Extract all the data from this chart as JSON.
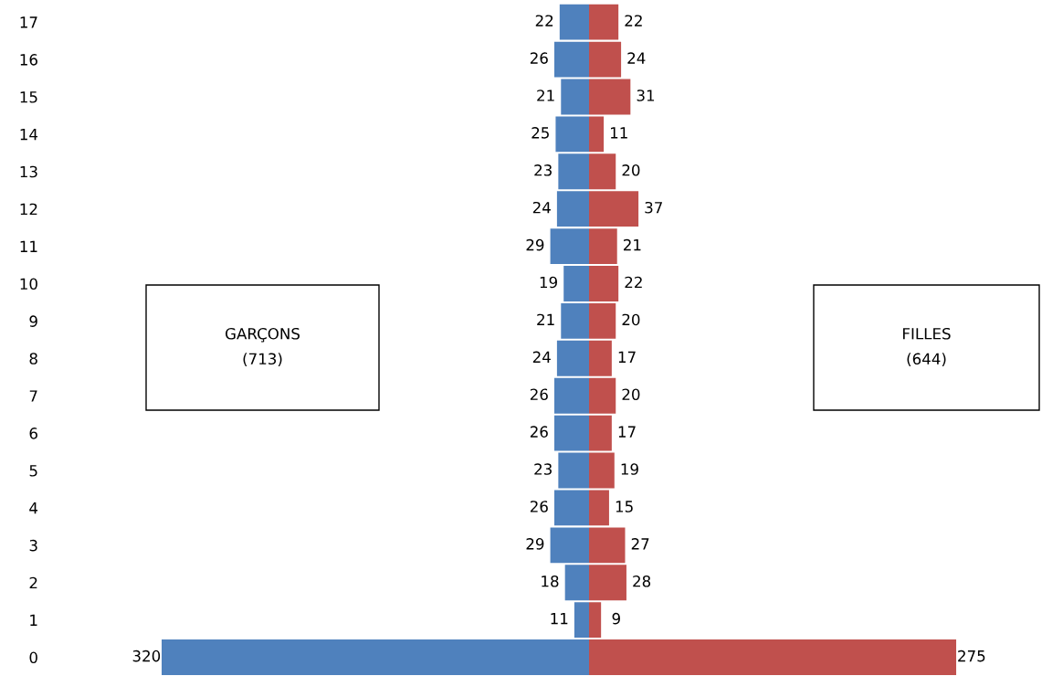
{
  "chart_data": [
    {
      "type": "bar",
      "orientation": "horizontal",
      "xlim": [
        320,
        0
      ],
      "categories": [
        "17",
        "16",
        "15",
        "14",
        "13",
        "12",
        "11",
        "10",
        "9",
        "8",
        "7",
        "6",
        "5",
        "4",
        "3",
        "2",
        "1",
        "0"
      ],
      "series": [
        {
          "color": "#4f81bd",
          "values": [
            22,
            26,
            21,
            25,
            23,
            24,
            29,
            19,
            21,
            24,
            26,
            26,
            23,
            26,
            29,
            18,
            11,
            320
          ]
        }
      ],
      "data_labels": true,
      "annotations": [
        "GARÇONS\n(713)"
      ],
      "grid": false,
      "legend": false,
      "tick_labels": "y"
    },
    {
      "type": "bar",
      "orientation": "horizontal",
      "xlim": [
        0,
        275
      ],
      "categories": [
        "17",
        "16",
        "15",
        "14",
        "13",
        "12",
        "11",
        "10",
        "9",
        "8",
        "7",
        "6",
        "5",
        "4",
        "3",
        "2",
        "1",
        "0"
      ],
      "series": [
        {
          "color": "#c0504d",
          "values": [
            22,
            24,
            31,
            11,
            20,
            37,
            21,
            22,
            20,
            17,
            20,
            17,
            19,
            15,
            27,
            28,
            9,
            275
          ]
        }
      ],
      "data_labels": true,
      "annotations": [
        "FILLES\n(644)"
      ],
      "grid": false,
      "legend": false,
      "tick_labels": false
    }
  ]
}
